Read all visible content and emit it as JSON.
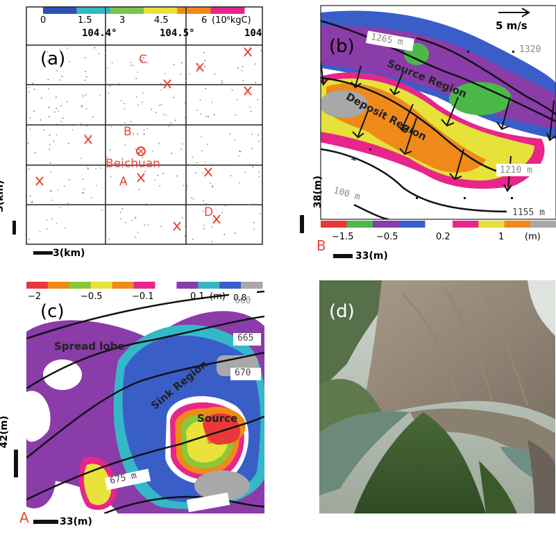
{
  "colors": {
    "cb_a": [
      "#2d4fb8",
      "#34b8c8",
      "#7bc64a",
      "#e7e33c",
      "#ef8a1a",
      "#e8258a"
    ],
    "cb_b_neg": [
      "#e8383a",
      "#4cb848",
      "#8a3ca8",
      "#3a5ec8"
    ],
    "cb_b_pos": [
      "#e8258a",
      "#e6e23a",
      "#ef8a1a",
      "#a8a8a8"
    ],
    "cb_c": [
      "#e8383a",
      "#ef8a1a",
      "#8ac83a",
      "#e8e23a",
      "#ef8a1a",
      "#e8258a",
      "#ffffff",
      "#8a3ca8",
      "#34b8c8",
      "#3a5ec8",
      "#a8a8a8"
    ],
    "marker": "#e8453a",
    "contour": "#111111"
  },
  "panel_a": {
    "label": "(a)",
    "cb_ticks": [
      "0",
      "1.5",
      "3",
      "4.5",
      "6"
    ],
    "cb_unit": "(10⁶kgC)",
    "lon_ticks": [
      "104.4°",
      "104.5°",
      "104"
    ],
    "points": [
      "C",
      "B",
      "A",
      "D"
    ],
    "center_name": "Beichuan",
    "scale_y": "3(km)",
    "scale_x": "3(km)"
  },
  "panel_b": {
    "label": "(b)",
    "vector_ref": "5 m/s",
    "contours": [
      "1265 m",
      "1320",
      "1210 m",
      "100 m",
      "1155 m"
    ],
    "region_source": "Source Region",
    "region_deposit": "Deposit Region",
    "cb_ticks": [
      "−1.5",
      "−0.5",
      "0.2",
      "1"
    ],
    "cb_unit": "(m)",
    "scale_y": "38(m)",
    "scale_x": "33(m)",
    "corner": "B"
  },
  "panel_c": {
    "label": "(c)",
    "cb_ticks": [
      "−2",
      "−0.5",
      "−0.1",
      "0.1"
    ],
    "cb_unit": "(m)",
    "cb_end": "0.8",
    "contours": [
      "660",
      "665",
      "670",
      "675 m"
    ],
    "region_spread": "Spread lobe",
    "region_sink": "Sink Region",
    "region_source": "Source",
    "scale_y": "42(m)",
    "scale_x": "33(m)",
    "corner": "A"
  },
  "panel_d": {
    "label": "(d)"
  }
}
